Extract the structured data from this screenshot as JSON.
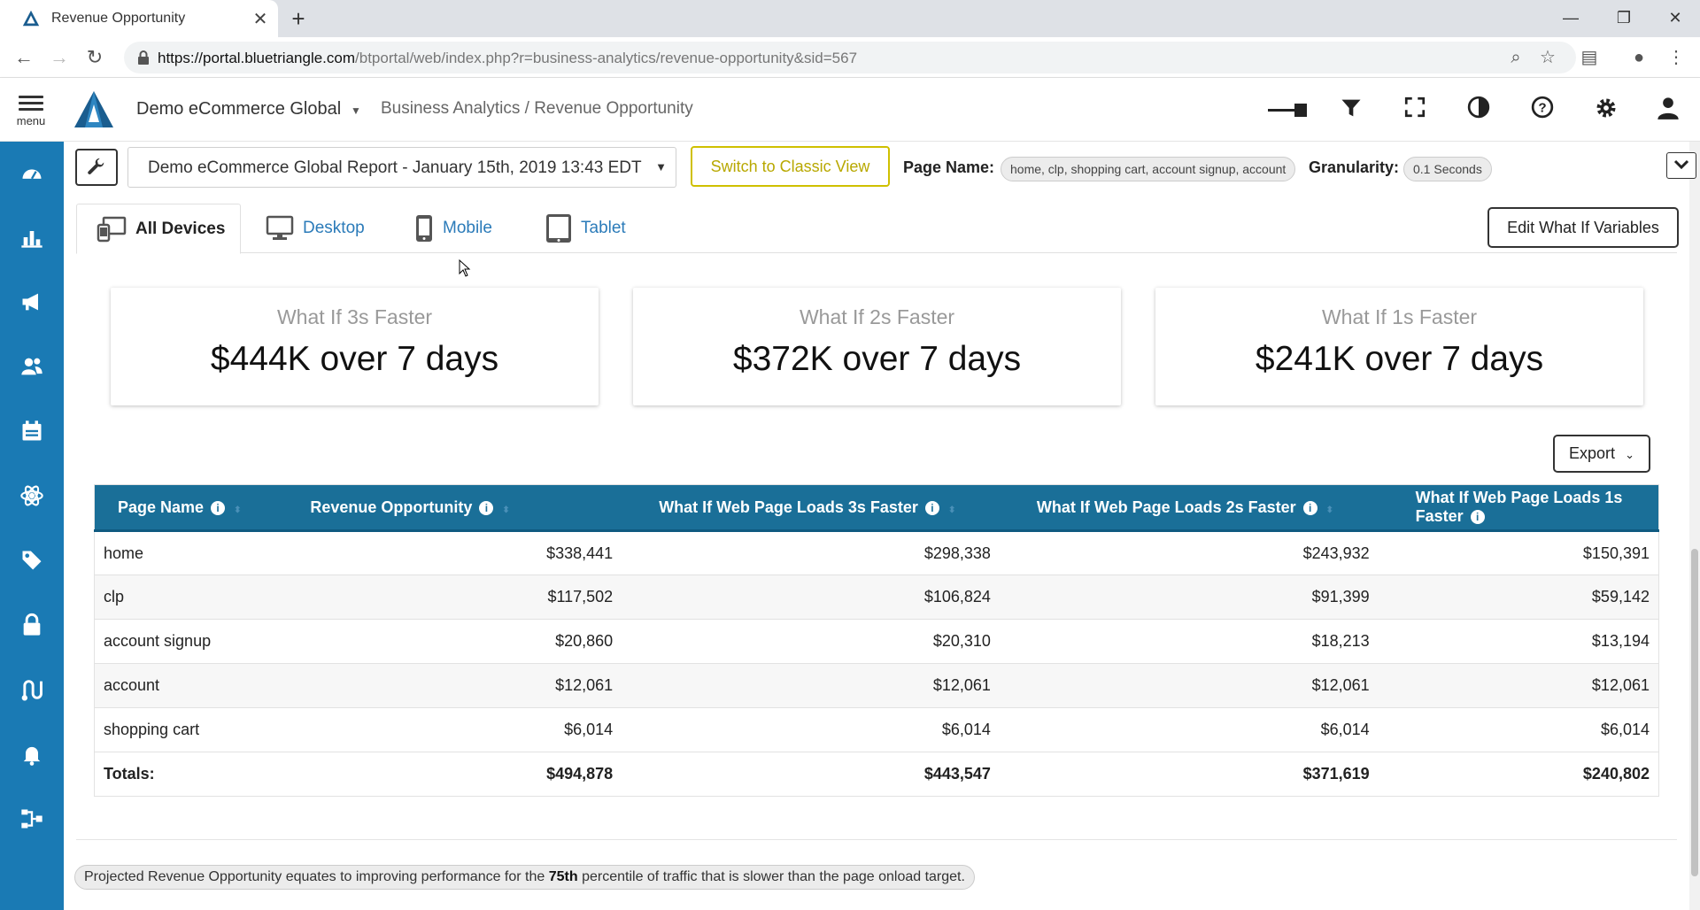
{
  "browser": {
    "tab_title": "Revenue Opportunity",
    "url_host": "https://portal.bluetriangle.com",
    "url_path": "/btportal/web/index.php?r=business-analytics/revenue-opportunity&sid=567"
  },
  "header": {
    "menu_label": "menu",
    "company": "Demo eCommerce Global",
    "breadcrumb": "Business Analytics / Revenue Opportunity"
  },
  "filters": {
    "report": "Demo eCommerce Global Report - January 15th, 2019 13:43 EDT",
    "classic_button": "Switch to Classic View",
    "page_name_label": "Page Name:",
    "page_name_value": "home, clp, shopping cart, account signup, account",
    "granularity_label": "Granularity:",
    "granularity_value": "0.1 Seconds"
  },
  "device_tabs": [
    {
      "label": "All Devices",
      "active": true
    },
    {
      "label": "Desktop",
      "active": false
    },
    {
      "label": "Mobile",
      "active": false
    },
    {
      "label": "Tablet",
      "active": false
    }
  ],
  "edit_button": "Edit What If Variables",
  "cards": [
    {
      "title": "What If 3s Faster",
      "value": "$444K over 7 days"
    },
    {
      "title": "What If 2s Faster",
      "value": "$372K over 7 days"
    },
    {
      "title": "What If 1s Faster",
      "value": "$241K over 7 days"
    }
  ],
  "export_button": "Export",
  "table": {
    "headers": [
      "Page Name",
      "Revenue Opportunity",
      "What If Web Page Loads 3s Faster",
      "What If Web Page Loads 2s Faster",
      "What If Web Page Loads 1s Faster"
    ],
    "rows": [
      [
        "home",
        "$338,441",
        "$298,338",
        "$243,932",
        "$150,391"
      ],
      [
        "clp",
        "$117,502",
        "$106,824",
        "$91,399",
        "$59,142"
      ],
      [
        "account signup",
        "$20,860",
        "$20,310",
        "$18,213",
        "$13,194"
      ],
      [
        "account",
        "$12,061",
        "$12,061",
        "$12,061",
        "$12,061"
      ],
      [
        "shopping cart",
        "$6,014",
        "$6,014",
        "$6,014",
        "$6,014"
      ]
    ],
    "totals": [
      "Totals:",
      "$494,878",
      "$443,547",
      "$371,619",
      "$240,802"
    ]
  },
  "footnote": {
    "before": "Projected Revenue Opportunity equates to improving performance for the ",
    "bold": "75th",
    "after": " percentile of traffic that is slower than the page onload target."
  },
  "colors": {
    "sidebar": "#1a7ab4",
    "table_header": "#1a6f98",
    "classic_button": "#cfc000",
    "link": "#2b7bb9"
  }
}
